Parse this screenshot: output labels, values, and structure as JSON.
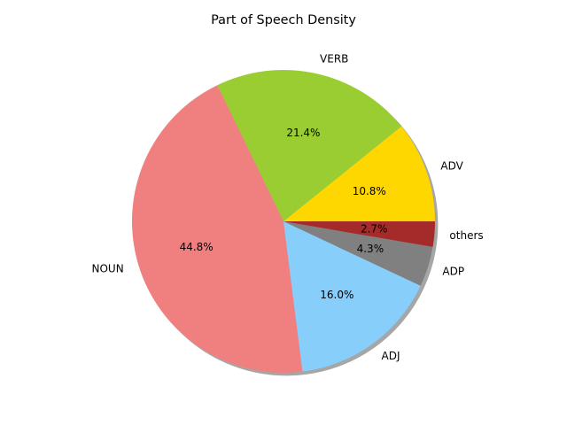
{
  "chart_data": {
    "type": "pie",
    "title": "Part of Speech Density",
    "shadow": true,
    "start_angle_deg": 0,
    "direction": "counterclockwise",
    "slices": [
      {
        "label": "ADV",
        "value": 10.8,
        "pct_label": "10.8%",
        "color": "#ffd700"
      },
      {
        "label": "VERB",
        "value": 21.4,
        "pct_label": "21.4%",
        "color": "#9acd32"
      },
      {
        "label": "NOUN",
        "value": 44.8,
        "pct_label": "44.8%",
        "color": "#f08080"
      },
      {
        "label": "ADJ",
        "value": 16.0,
        "pct_label": "16.0%",
        "color": "#87cefa"
      },
      {
        "label": "ADP",
        "value": 4.3,
        "pct_label": "4.3%",
        "color": "#808080"
      },
      {
        "label": "others",
        "value": 2.7,
        "pct_label": "2.7%",
        "color": "#a52a2a"
      }
    ]
  }
}
